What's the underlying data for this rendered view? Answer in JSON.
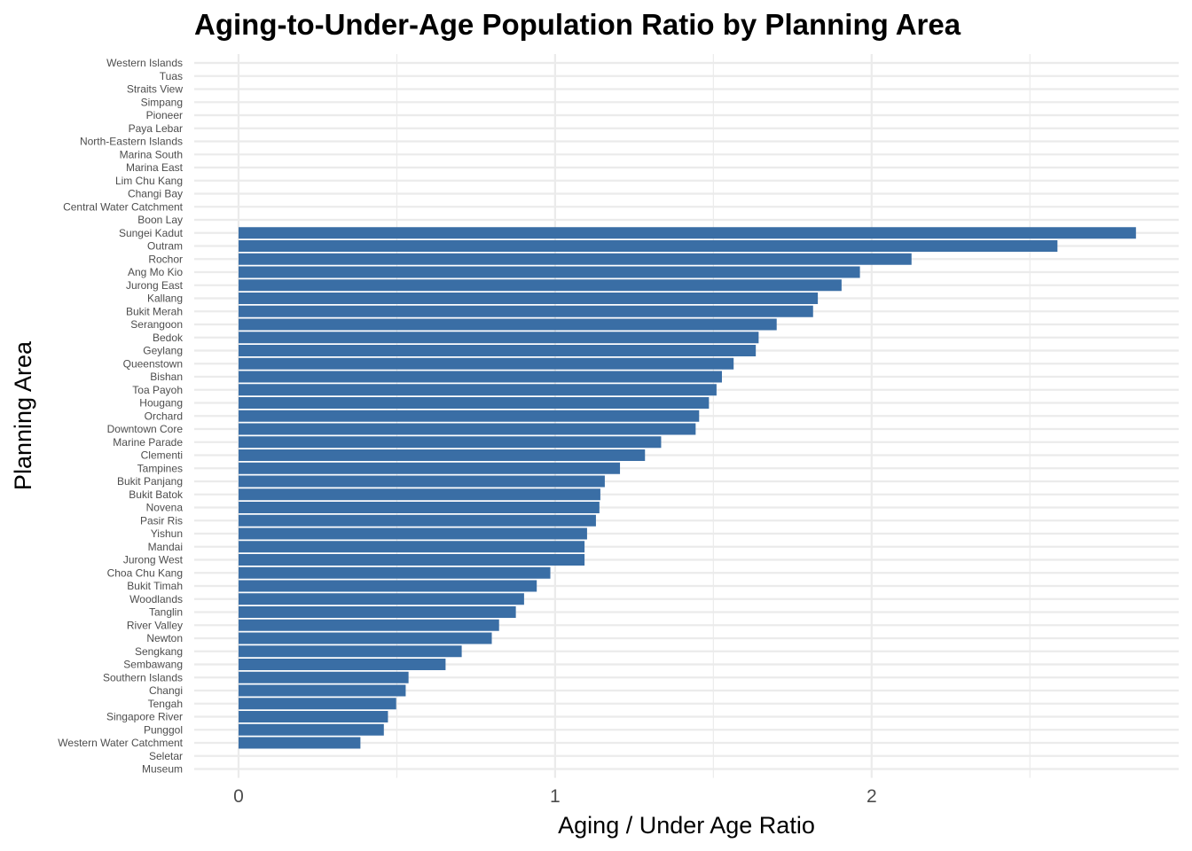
{
  "chart_data": {
    "type": "bar",
    "orientation": "horizontal",
    "title": "Aging-to-Under-Age Population Ratio by Planning Area",
    "xlabel": "Aging / Under Age Ratio",
    "ylabel": "Planning Area",
    "xlim": [
      -0.14,
      2.97
    ],
    "x_ticks": [
      0,
      1,
      2
    ],
    "grid": true,
    "bar_color": "#3a6ea5",
    "categories": [
      "Western Islands",
      "Tuas",
      "Straits View",
      "Simpang",
      "Pioneer",
      "Paya Lebar",
      "North-Eastern Islands",
      "Marina South",
      "Marina East",
      "Lim Chu Kang",
      "Changi Bay",
      "Central Water Catchment",
      "Boon Lay",
      "Sungei Kadut",
      "Outram",
      "Rochor",
      "Ang Mo Kio",
      "Jurong East",
      "Kallang",
      "Bukit Merah",
      "Serangoon",
      "Bedok",
      "Geylang",
      "Queenstown",
      "Bishan",
      "Toa Payoh",
      "Hougang",
      "Orchard",
      "Downtown Core",
      "Marine Parade",
      "Clementi",
      "Tampines",
      "Bukit Panjang",
      "Bukit Batok",
      "Novena",
      "Pasir Ris",
      "Yishun",
      "Mandai",
      "Jurong West",
      "Choa Chu Kang",
      "Bukit Timah",
      "Woodlands",
      "Tanglin",
      "River Valley",
      "Newton",
      "Sengkang",
      "Sembawang",
      "Southern Islands",
      "Changi",
      "Tengah",
      "Singapore River",
      "Punggol",
      "Western Water Catchment",
      "Seletar",
      "Museum"
    ],
    "values": [
      0,
      0,
      0,
      0,
      0,
      0,
      0,
      0,
      0,
      0,
      0,
      0,
      0,
      2.835,
      2.587,
      2.126,
      1.963,
      1.905,
      1.83,
      1.815,
      1.7,
      1.643,
      1.634,
      1.564,
      1.527,
      1.51,
      1.486,
      1.455,
      1.444,
      1.335,
      1.284,
      1.205,
      1.157,
      1.143,
      1.14,
      1.129,
      1.101,
      1.093,
      1.093,
      0.985,
      0.942,
      0.902,
      0.876,
      0.823,
      0.8,
      0.705,
      0.654,
      0.537,
      0.528,
      0.498,
      0.472,
      0.459,
      0.385,
      0,
      0
    ]
  }
}
